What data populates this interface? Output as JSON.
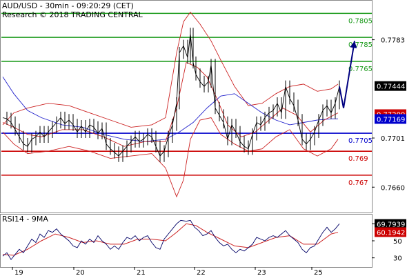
{
  "chart_data": {
    "type": "line",
    "title": "AUD/USD - 30min - 09:20:29 (CET)",
    "subtitle": "Research © 2018 TRADING CENTRAL",
    "price_panel": {
      "ylim": [
        0.764,
        0.7815
      ],
      "y_ticks": [
        "0.7783",
        "0.7701",
        "0.7660"
      ],
      "y_tick_values": [
        0.7783,
        0.7701,
        0.766
      ],
      "x_ticks": [
        "19",
        "20",
        "21",
        "22",
        "23",
        "25"
      ],
      "x_tick_pos": [
        18,
        107,
        195,
        282,
        370,
        452
      ],
      "levels": [
        {
          "label": "0.7805",
          "value": 0.7805,
          "color": "#1a9a1a"
        },
        {
          "label": "0.7785",
          "value": 0.7785,
          "color": "#1a9a1a"
        },
        {
          "label": "0.7765",
          "value": 0.7765,
          "color": "#1a9a1a"
        },
        {
          "label": "0.7705",
          "value": 0.7705,
          "color": "#0000cc"
        },
        {
          "label": "0.769",
          "value": 0.769,
          "color": "#cc0000"
        },
        {
          "label": "0.767",
          "value": 0.767,
          "color": "#cc0000"
        }
      ],
      "price_tags": [
        {
          "label": "0.77444",
          "value": 0.77444,
          "bg": "#000000",
          "fg": "#ffffff"
        },
        {
          "label": "0.77209",
          "value": 0.77209,
          "bg": "#cc0000",
          "fg": "#ffffff"
        },
        {
          "label": "0.77169",
          "value": 0.77169,
          "bg": "#0000cc",
          "fg": "#ffffff"
        }
      ],
      "price_points": [
        [
          4,
          0.7718
        ],
        [
          10,
          0.7717
        ],
        [
          16,
          0.7714
        ],
        [
          22,
          0.7708
        ],
        [
          28,
          0.7702
        ],
        [
          34,
          0.7696
        ],
        [
          40,
          0.7694
        ],
        [
          46,
          0.77
        ],
        [
          52,
          0.7702
        ],
        [
          58,
          0.7706
        ],
        [
          64,
          0.7702
        ],
        [
          70,
          0.7706
        ],
        [
          76,
          0.771
        ],
        [
          82,
          0.7714
        ],
        [
          88,
          0.7718
        ],
        [
          94,
          0.7713
        ],
        [
          100,
          0.7716
        ],
        [
          106,
          0.7712
        ],
        [
          112,
          0.7706
        ],
        [
          118,
          0.7711
        ],
        [
          124,
          0.7706
        ],
        [
          130,
          0.7712
        ],
        [
          136,
          0.771
        ],
        [
          142,
          0.7705
        ],
        [
          148,
          0.7709
        ],
        [
          154,
          0.7696
        ],
        [
          160,
          0.7692
        ],
        [
          166,
          0.7689
        ],
        [
          172,
          0.7686
        ],
        [
          178,
          0.769
        ],
        [
          184,
          0.7694
        ],
        [
          190,
          0.7698
        ],
        [
          196,
          0.7702
        ],
        [
          202,
          0.7698
        ],
        [
          208,
          0.77
        ],
        [
          214,
          0.7704
        ],
        [
          220,
          0.7702
        ],
        [
          226,
          0.7694
        ],
        [
          232,
          0.7686
        ],
        [
          238,
          0.769
        ],
        [
          244,
          0.7702
        ],
        [
          250,
          0.7712
        ],
        [
          256,
          0.773
        ],
        [
          260,
          0.7772
        ],
        [
          266,
          0.7778
        ],
        [
          272,
          0.7768
        ],
        [
          276,
          0.7788
        ],
        [
          280,
          0.7764
        ],
        [
          284,
          0.7754
        ],
        [
          290,
          0.7748
        ],
        [
          296,
          0.7744
        ],
        [
          302,
          0.7748
        ],
        [
          306,
          0.7762
        ],
        [
          312,
          0.7726
        ],
        [
          318,
          0.772
        ],
        [
          324,
          0.7714
        ],
        [
          330,
          0.77
        ],
        [
          336,
          0.7712
        ],
        [
          342,
          0.7706
        ],
        [
          348,
          0.7698
        ],
        [
          354,
          0.7694
        ],
        [
          360,
          0.7692
        ],
        [
          366,
          0.7704
        ],
        [
          372,
          0.7714
        ],
        [
          378,
          0.7712
        ],
        [
          384,
          0.7718
        ],
        [
          390,
          0.7722
        ],
        [
          396,
          0.7724
        ],
        [
          402,
          0.773
        ],
        [
          408,
          0.7722
        ],
        [
          414,
          0.7744
        ],
        [
          420,
          0.7734
        ],
        [
          426,
          0.7728
        ],
        [
          432,
          0.7716
        ],
        [
          438,
          0.77
        ],
        [
          444,
          0.7696
        ],
        [
          450,
          0.77
        ],
        [
          456,
          0.7706
        ],
        [
          462,
          0.7716
        ],
        [
          468,
          0.7724
        ],
        [
          474,
          0.7728
        ],
        [
          480,
          0.7722
        ],
        [
          486,
          0.773
        ],
        [
          492,
          0.7744
        ]
      ],
      "forecast_arrow": [
        [
          492,
          0.7744
        ],
        [
          498,
          0.7726
        ],
        [
          514,
          0.7782
        ]
      ],
      "bollinger_upper": [
        [
          4,
          0.7712
        ],
        [
          20,
          0.7722
        ],
        [
          40,
          0.7726
        ],
        [
          70,
          0.773
        ],
        [
          100,
          0.7728
        ],
        [
          130,
          0.7722
        ],
        [
          160,
          0.7716
        ],
        [
          190,
          0.771
        ],
        [
          220,
          0.7712
        ],
        [
          240,
          0.7718
        ],
        [
          256,
          0.7772
        ],
        [
          266,
          0.7798
        ],
        [
          276,
          0.7806
        ],
        [
          290,
          0.7796
        ],
        [
          306,
          0.7782
        ],
        [
          320,
          0.7766
        ],
        [
          340,
          0.7744
        ],
        [
          360,
          0.7728
        ],
        [
          380,
          0.773
        ],
        [
          400,
          0.7738
        ],
        [
          420,
          0.7744
        ],
        [
          440,
          0.7746
        ],
        [
          460,
          0.774
        ],
        [
          480,
          0.7742
        ],
        [
          490,
          0.7746
        ]
      ],
      "bollinger_lower": [
        [
          4,
          0.7706
        ],
        [
          20,
          0.7696
        ],
        [
          40,
          0.7688
        ],
        [
          70,
          0.769
        ],
        [
          100,
          0.7694
        ],
        [
          130,
          0.769
        ],
        [
          160,
          0.7684
        ],
        [
          190,
          0.7686
        ],
        [
          220,
          0.7688
        ],
        [
          240,
          0.7676
        ],
        [
          256,
          0.7652
        ],
        [
          266,
          0.7666
        ],
        [
          276,
          0.77
        ],
        [
          290,
          0.7716
        ],
        [
          306,
          0.7718
        ],
        [
          320,
          0.7704
        ],
        [
          340,
          0.7696
        ],
        [
          360,
          0.769
        ],
        [
          380,
          0.7692
        ],
        [
          400,
          0.7702
        ],
        [
          420,
          0.7708
        ],
        [
          440,
          0.7692
        ],
        [
          460,
          0.7686
        ],
        [
          480,
          0.7692
        ],
        [
          490,
          0.77
        ]
      ],
      "ma_blue": [
        [
          4,
          0.7752
        ],
        [
          20,
          0.7738
        ],
        [
          40,
          0.7724
        ],
        [
          60,
          0.7718
        ],
        [
          90,
          0.7712
        ],
        [
          120,
          0.771
        ],
        [
          150,
          0.7704
        ],
        [
          180,
          0.77
        ],
        [
          210,
          0.7698
        ],
        [
          240,
          0.77
        ],
        [
          260,
          0.7706
        ],
        [
          280,
          0.7714
        ],
        [
          300,
          0.7726
        ],
        [
          320,
          0.7736
        ],
        [
          340,
          0.7738
        ],
        [
          360,
          0.773
        ],
        [
          380,
          0.7722
        ],
        [
          400,
          0.7716
        ],
        [
          420,
          0.7712
        ],
        [
          440,
          0.7714
        ],
        [
          460,
          0.7716
        ],
        [
          480,
          0.7717
        ],
        [
          490,
          0.7717
        ]
      ],
      "ma_red": [
        [
          4,
          0.7714
        ],
        [
          20,
          0.771
        ],
        [
          40,
          0.7704
        ],
        [
          60,
          0.7702
        ],
        [
          90,
          0.7708
        ],
        [
          120,
          0.7708
        ],
        [
          150,
          0.7702
        ],
        [
          180,
          0.7694
        ],
        [
          210,
          0.7698
        ],
        [
          240,
          0.7698
        ],
        [
          256,
          0.7726
        ],
        [
          270,
          0.7764
        ],
        [
          286,
          0.776
        ],
        [
          300,
          0.7752
        ],
        [
          316,
          0.7732
        ],
        [
          330,
          0.7712
        ],
        [
          350,
          0.7702
        ],
        [
          370,
          0.7706
        ],
        [
          390,
          0.7716
        ],
        [
          410,
          0.7726
        ],
        [
          430,
          0.772
        ],
        [
          450,
          0.7706
        ],
        [
          470,
          0.7716
        ],
        [
          490,
          0.7722
        ]
      ]
    },
    "rsi_panel": {
      "label": "RSI14 - 9MA",
      "ylim": [
        20,
        80
      ],
      "y_ticks": [
        "70",
        "50",
        "30"
      ],
      "y_tick_values": [
        70,
        50,
        30
      ],
      "price_tags": [
        {
          "label": "69.7939",
          "value": 69.79,
          "bg": "#000000",
          "fg": "#ffffff"
        },
        {
          "label": "60.1942",
          "value": 60.19,
          "bg": "#cc0000",
          "fg": "#ffffff"
        }
      ],
      "rsi": [
        [
          4,
          32
        ],
        [
          10,
          36
        ],
        [
          16,
          28
        ],
        [
          22,
          34
        ],
        [
          28,
          40
        ],
        [
          34,
          36
        ],
        [
          40,
          44
        ],
        [
          46,
          52
        ],
        [
          52,
          48
        ],
        [
          58,
          58
        ],
        [
          64,
          54
        ],
        [
          70,
          62
        ],
        [
          76,
          60
        ],
        [
          82,
          64
        ],
        [
          88,
          58
        ],
        [
          94,
          54
        ],
        [
          100,
          50
        ],
        [
          106,
          44
        ],
        [
          112,
          42
        ],
        [
          118,
          50
        ],
        [
          124,
          46
        ],
        [
          130,
          52
        ],
        [
          136,
          48
        ],
        [
          142,
          56
        ],
        [
          148,
          50
        ],
        [
          154,
          46
        ],
        [
          160,
          40
        ],
        [
          166,
          44
        ],
        [
          172,
          40
        ],
        [
          178,
          48
        ],
        [
          184,
          54
        ],
        [
          190,
          52
        ],
        [
          196,
          56
        ],
        [
          202,
          50
        ],
        [
          208,
          54
        ],
        [
          214,
          56
        ],
        [
          220,
          48
        ],
        [
          226,
          42
        ],
        [
          232,
          40
        ],
        [
          238,
          52
        ],
        [
          244,
          58
        ],
        [
          250,
          64
        ],
        [
          256,
          70
        ],
        [
          262,
          74
        ],
        [
          270,
          73
        ],
        [
          276,
          74
        ],
        [
          282,
          66
        ],
        [
          288,
          62
        ],
        [
          294,
          56
        ],
        [
          300,
          58
        ],
        [
          306,
          62
        ],
        [
          312,
          54
        ],
        [
          318,
          48
        ],
        [
          324,
          44
        ],
        [
          330,
          46
        ],
        [
          336,
          40
        ],
        [
          342,
          36
        ],
        [
          348,
          40
        ],
        [
          354,
          38
        ],
        [
          360,
          42
        ],
        [
          366,
          46
        ],
        [
          372,
          54
        ],
        [
          378,
          52
        ],
        [
          384,
          50
        ],
        [
          390,
          54
        ],
        [
          396,
          56
        ],
        [
          402,
          54
        ],
        [
          408,
          58
        ],
        [
          414,
          62
        ],
        [
          420,
          56
        ],
        [
          426,
          52
        ],
        [
          432,
          48
        ],
        [
          438,
          40
        ],
        [
          444,
          36
        ],
        [
          450,
          42
        ],
        [
          456,
          44
        ],
        [
          462,
          52
        ],
        [
          468,
          60
        ],
        [
          474,
          66
        ],
        [
          480,
          60
        ],
        [
          486,
          64
        ],
        [
          492,
          70
        ]
      ],
      "rsi_ma": [
        [
          4,
          34
        ],
        [
          20,
          33
        ],
        [
          40,
          40
        ],
        [
          60,
          50
        ],
        [
          80,
          58
        ],
        [
          100,
          54
        ],
        [
          120,
          48
        ],
        [
          140,
          50
        ],
        [
          160,
          46
        ],
        [
          180,
          46
        ],
        [
          200,
          52
        ],
        [
          220,
          52
        ],
        [
          240,
          50
        ],
        [
          256,
          60
        ],
        [
          270,
          70
        ],
        [
          284,
          68
        ],
        [
          300,
          60
        ],
        [
          320,
          52
        ],
        [
          340,
          44
        ],
        [
          360,
          42
        ],
        [
          380,
          48
        ],
        [
          400,
          54
        ],
        [
          420,
          56
        ],
        [
          440,
          46
        ],
        [
          460,
          46
        ],
        [
          480,
          58
        ],
        [
          490,
          60
        ]
      ]
    }
  }
}
